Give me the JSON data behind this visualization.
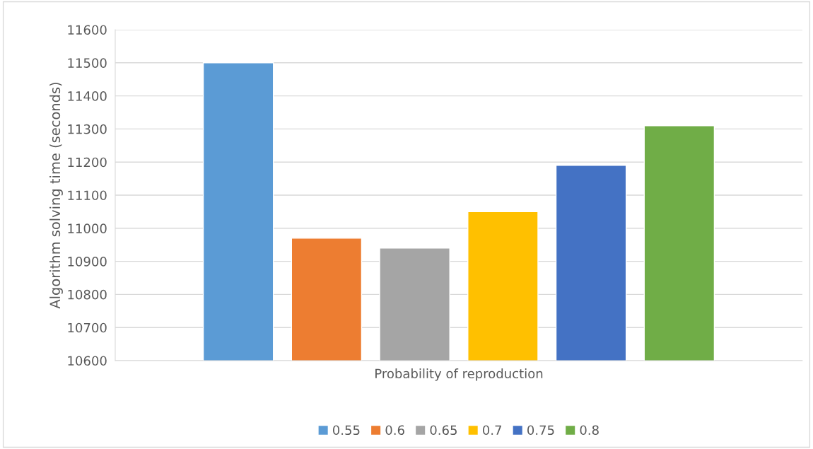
{
  "chart_data": {
    "type": "bar",
    "ylabel": "Algorithm solving time (seconds)",
    "categories": [
      "Probability of reproduction"
    ],
    "series": [
      {
        "name": "0.55",
        "color": "#5b9bd5",
        "values": [
          11500
        ]
      },
      {
        "name": "0.6",
        "color": "#ed7d31",
        "values": [
          10970
        ]
      },
      {
        "name": "0.65",
        "color": "#a5a5a5",
        "values": [
          10940
        ]
      },
      {
        "name": "0.7",
        "color": "#ffc000",
        "values": [
          11050
        ]
      },
      {
        "name": "0.75",
        "color": "#4472c4",
        "values": [
          11190
        ]
      },
      {
        "name": "0.8",
        "color": "#70ad47",
        "values": [
          11310
        ]
      }
    ],
    "ylim": [
      10600,
      11600
    ],
    "yticks": [
      10600,
      10700,
      10800,
      10900,
      11000,
      11100,
      11200,
      11300,
      11400,
      11500,
      11600
    ],
    "grid": "y",
    "legend": "bottom"
  }
}
